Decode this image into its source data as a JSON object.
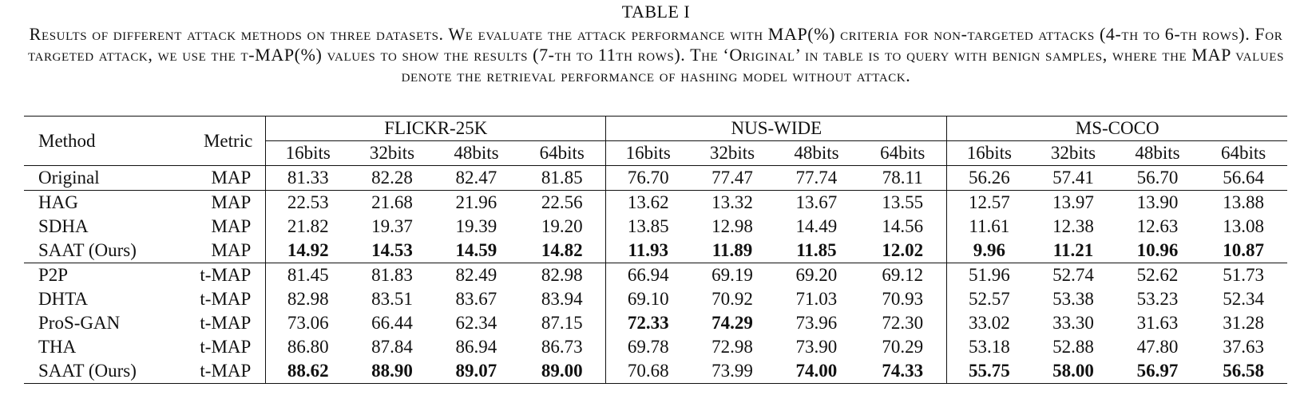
{
  "table_label": "TABLE I",
  "caption": "Results of different attack methods on three datasets. We evaluate the attack performance with MAP(%) criteria for non-targeted attacks (4-th to 6-th rows). For targeted attack, we use the t-MAP(%) values to show the results (7-th to 11th rows). The ‘Original’ in table is to query with benign samples, where the MAP values denote the retrieval performance of hashing model without attack.",
  "header": {
    "method": "Method",
    "metric": "Metric",
    "datasets": [
      "FLICKR-25K",
      "NUS-WIDE",
      "MS-COCO"
    ],
    "bits": [
      "16bits",
      "32bits",
      "48bits",
      "64bits",
      "16bits",
      "32bits",
      "48bits",
      "64bits",
      "16bits",
      "32bits",
      "48bits",
      "64bits"
    ]
  },
  "rows": [
    {
      "method": "Original",
      "metric": "MAP",
      "values": [
        "81.33",
        "82.28",
        "82.47",
        "81.85",
        "76.70",
        "77.47",
        "77.74",
        "78.11",
        "56.26",
        "57.41",
        "56.70",
        "56.64"
      ],
      "bold": []
    },
    {
      "method": "HAG",
      "metric": "MAP",
      "values": [
        "22.53",
        "21.68",
        "21.96",
        "22.56",
        "13.62",
        "13.32",
        "13.67",
        "13.55",
        "12.57",
        "13.97",
        "13.90",
        "13.88"
      ],
      "bold": []
    },
    {
      "method": "SDHA",
      "metric": "MAP",
      "values": [
        "21.82",
        "19.37",
        "19.39",
        "19.20",
        "13.85",
        "12.98",
        "14.49",
        "14.56",
        "11.61",
        "12.38",
        "12.63",
        "13.08"
      ],
      "bold": []
    },
    {
      "method": "SAAT (Ours)",
      "metric": "MAP",
      "values": [
        "14.92",
        "14.53",
        "14.59",
        "14.82",
        "11.93",
        "11.89",
        "11.85",
        "12.02",
        "9.96",
        "11.21",
        "10.96",
        "10.87"
      ],
      "bold": [
        0,
        1,
        2,
        3,
        4,
        5,
        6,
        7,
        8,
        9,
        10,
        11
      ]
    },
    {
      "method": "P2P",
      "metric": "t-MAP",
      "values": [
        "81.45",
        "81.83",
        "82.49",
        "82.98",
        "66.94",
        "69.19",
        "69.20",
        "69.12",
        "51.96",
        "52.74",
        "52.62",
        "51.73"
      ],
      "bold": []
    },
    {
      "method": "DHTA",
      "metric": "t-MAP",
      "values": [
        "82.98",
        "83.51",
        "83.67",
        "83.94",
        "69.10",
        "70.92",
        "71.03",
        "70.93",
        "52.57",
        "53.38",
        "53.23",
        "52.34"
      ],
      "bold": []
    },
    {
      "method": "ProS-GAN",
      "metric": "t-MAP",
      "values": [
        "73.06",
        "66.44",
        "62.34",
        "87.15",
        "72.33",
        "74.29",
        "73.96",
        "72.30",
        "33.02",
        "33.30",
        "31.63",
        "31.28"
      ],
      "bold": [
        4,
        5
      ]
    },
    {
      "method": "THA",
      "metric": "t-MAP",
      "values": [
        "86.80",
        "87.84",
        "86.94",
        "86.73",
        "69.78",
        "72.98",
        "73.90",
        "70.29",
        "53.18",
        "52.88",
        "47.80",
        "37.63"
      ],
      "bold": []
    },
    {
      "method": "SAAT (Ours)",
      "metric": "t-MAP",
      "values": [
        "88.62",
        "88.90",
        "89.07",
        "89.00",
        "70.68",
        "73.99",
        "74.00",
        "74.33",
        "55.75",
        "58.00",
        "56.97",
        "56.58"
      ],
      "bold": [
        0,
        1,
        2,
        3,
        6,
        7,
        8,
        9,
        10,
        11
      ]
    }
  ]
}
